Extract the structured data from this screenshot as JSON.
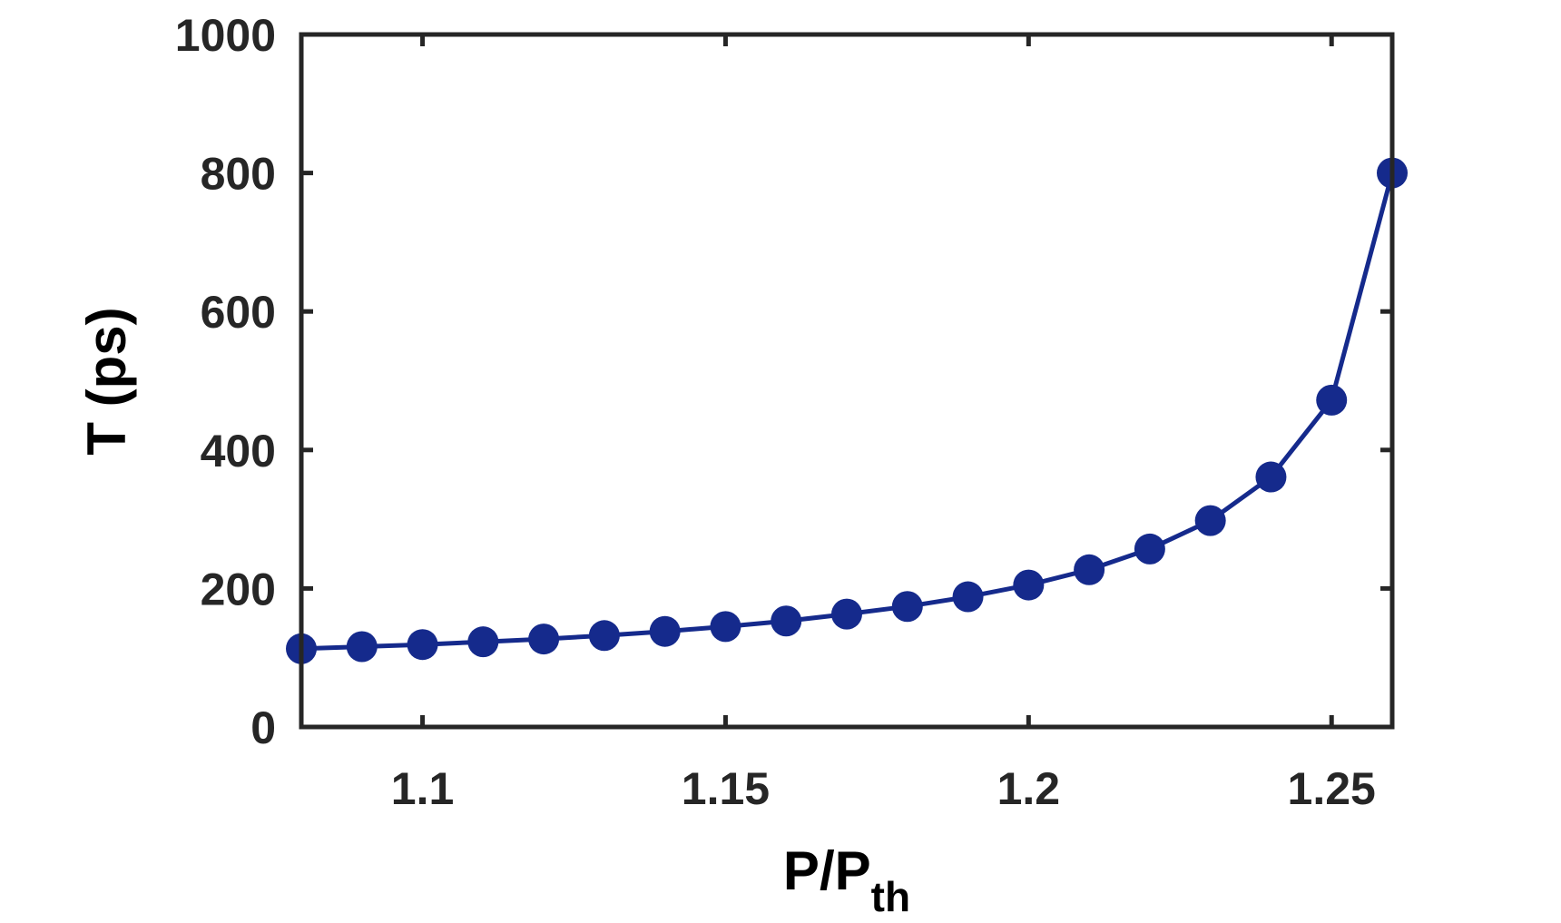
{
  "chart_data": {
    "type": "line",
    "title": "",
    "xlabel": {
      "main": "P/P",
      "subscript": "th"
    },
    "ylabel": "T (ps)",
    "xlim": [
      1.08,
      1.26
    ],
    "ylim": [
      0,
      1000
    ],
    "xticks": [
      1.1,
      1.15,
      1.2,
      1.25
    ],
    "xtick_labels": [
      "1.1",
      "1.15",
      "1.2",
      "1.25"
    ],
    "yticks": [
      0,
      200,
      400,
      600,
      800,
      1000
    ],
    "ytick_labels": [
      "0",
      "200",
      "400",
      "600",
      "800",
      "1000"
    ],
    "grid": false,
    "series": [
      {
        "color": "#152a8c",
        "marker": "circle",
        "x": [
          1.08,
          1.09,
          1.1,
          1.11,
          1.12,
          1.13,
          1.14,
          1.15,
          1.16,
          1.17,
          1.18,
          1.19,
          1.2,
          1.21,
          1.22,
          1.23,
          1.24,
          1.25,
          1.26
        ],
        "y": [
          113,
          116,
          119,
          123,
          127,
          132,
          138,
          145,
          153,
          163,
          174,
          188,
          205,
          227,
          257,
          298,
          361,
          472,
          800
        ]
      }
    ]
  }
}
